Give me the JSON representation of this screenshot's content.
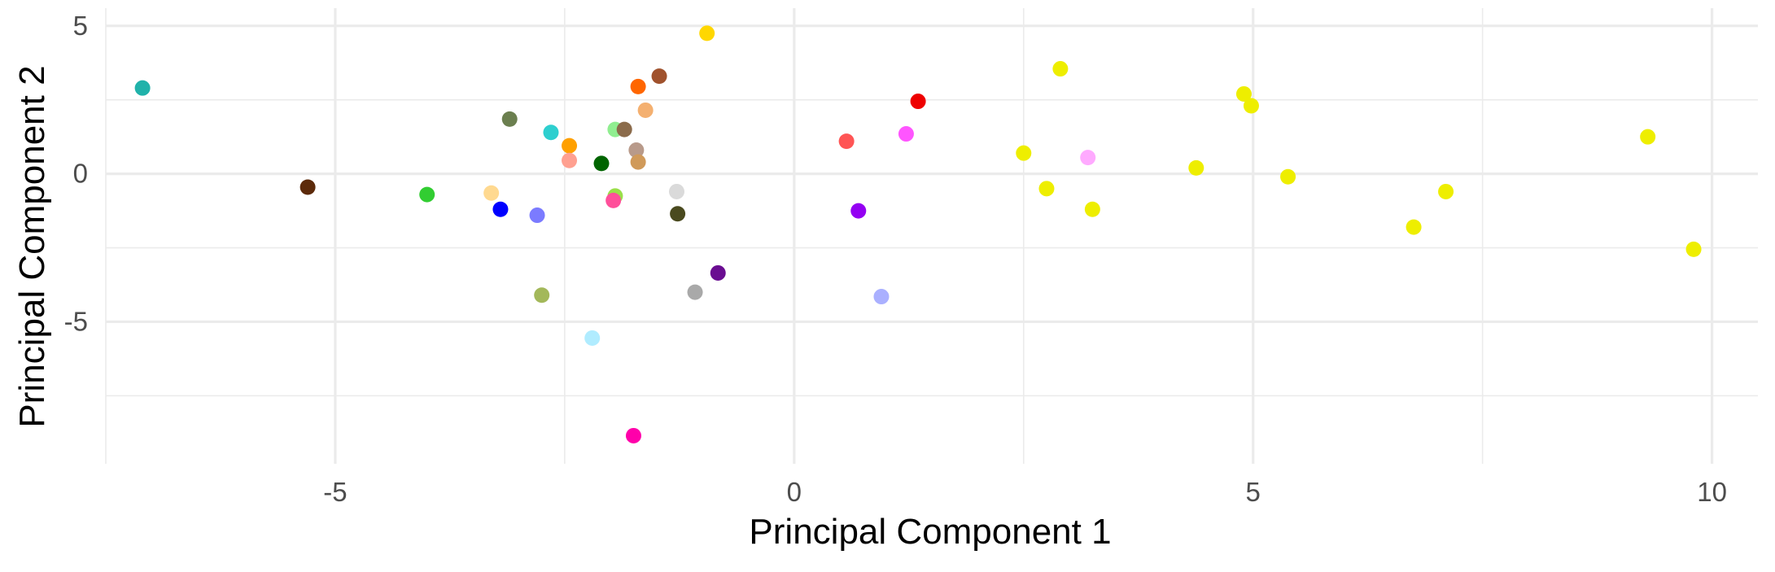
{
  "chart_data": {
    "type": "scatter",
    "title": "",
    "xlabel": "Principal Component 1",
    "ylabel": "Principal Component 2",
    "xlim": [
      -7.5,
      10.5
    ],
    "ylim": [
      -9.8,
      5.6
    ],
    "x_ticks": [
      -5,
      0,
      5,
      10
    ],
    "y_ticks": [
      -5,
      0,
      5
    ],
    "x_tick_labels": [
      "-5",
      "0",
      "5",
      "10"
    ],
    "y_tick_labels": [
      "-5",
      "0",
      "5"
    ],
    "grid": true,
    "legend": "none",
    "points": [
      {
        "x": -7.1,
        "y": 2.9,
        "color": "#20b2aa"
      },
      {
        "x": -5.3,
        "y": -0.45,
        "color": "#5c2a0a"
      },
      {
        "x": -4.0,
        "y": -0.7,
        "color": "#32cd32"
      },
      {
        "x": -3.3,
        "y": -0.65,
        "color": "#ffd990"
      },
      {
        "x": -3.2,
        "y": -1.2,
        "color": "#0000ff"
      },
      {
        "x": -3.1,
        "y": 1.85,
        "color": "#6b7f4f"
      },
      {
        "x": -2.8,
        "y": -1.4,
        "color": "#7b7bff"
      },
      {
        "x": -2.75,
        "y": -4.1,
        "color": "#a3b85a"
      },
      {
        "x": -2.65,
        "y": 1.4,
        "color": "#2ecfcf"
      },
      {
        "x": -2.45,
        "y": 0.95,
        "color": "#ffa000"
      },
      {
        "x": -2.45,
        "y": 0.45,
        "color": "#ffa090"
      },
      {
        "x": -2.2,
        "y": -5.55,
        "color": "#b0ecff"
      },
      {
        "x": -2.1,
        "y": 0.35,
        "color": "#006400"
      },
      {
        "x": -1.95,
        "y": 1.5,
        "color": "#90ee90"
      },
      {
        "x": -1.95,
        "y": -0.75,
        "color": "#9adf4a"
      },
      {
        "x": -1.97,
        "y": -0.9,
        "color": "#ff4f9a"
      },
      {
        "x": -1.85,
        "y": 1.5,
        "color": "#8b6b4b"
      },
      {
        "x": -1.75,
        "y": -8.85,
        "color": "#ff00aa"
      },
      {
        "x": -1.72,
        "y": 0.8,
        "color": "#b89a8a"
      },
      {
        "x": -1.7,
        "y": 0.4,
        "color": "#d09a5a"
      },
      {
        "x": -1.7,
        "y": 2.95,
        "color": "#ff6600"
      },
      {
        "x": -1.62,
        "y": 2.15,
        "color": "#f4b070"
      },
      {
        "x": -1.47,
        "y": 3.3,
        "color": "#a0522d"
      },
      {
        "x": -1.28,
        "y": -0.6,
        "color": "#dadada"
      },
      {
        "x": -1.27,
        "y": -1.35,
        "color": "#4a4a1f"
      },
      {
        "x": -1.08,
        "y": -4.0,
        "color": "#a9a9a9"
      },
      {
        "x": -0.95,
        "y": 4.75,
        "color": "#ffd700"
      },
      {
        "x": -0.83,
        "y": -3.35,
        "color": "#6a0d91"
      },
      {
        "x": 0.57,
        "y": 1.1,
        "color": "#ff5555"
      },
      {
        "x": 0.7,
        "y": -1.25,
        "color": "#9400f2"
      },
      {
        "x": 0.95,
        "y": -4.15,
        "color": "#aab0ff"
      },
      {
        "x": 1.22,
        "y": 1.35,
        "color": "#ff55ff"
      },
      {
        "x": 1.35,
        "y": 2.45,
        "color": "#ee0000"
      },
      {
        "x": 2.5,
        "y": 0.7,
        "color": "#eeee00"
      },
      {
        "x": 2.75,
        "y": -0.5,
        "color": "#eeee00"
      },
      {
        "x": 2.9,
        "y": 3.55,
        "color": "#eeee00"
      },
      {
        "x": 3.2,
        "y": 0.55,
        "color": "#ffaaff"
      },
      {
        "x": 3.25,
        "y": -1.2,
        "color": "#eeee00"
      },
      {
        "x": 4.38,
        "y": 0.2,
        "color": "#eeee00"
      },
      {
        "x": 4.9,
        "y": 2.7,
        "color": "#eeee00"
      },
      {
        "x": 4.98,
        "y": 2.3,
        "color": "#eeee00"
      },
      {
        "x": 5.38,
        "y": -0.1,
        "color": "#eeee00"
      },
      {
        "x": 6.75,
        "y": -1.8,
        "color": "#eeee00"
      },
      {
        "x": 7.1,
        "y": -0.6,
        "color": "#eeee00"
      },
      {
        "x": 9.3,
        "y": 1.25,
        "color": "#eeee00"
      },
      {
        "x": 9.8,
        "y": -2.55,
        "color": "#eeee00"
      }
    ]
  }
}
